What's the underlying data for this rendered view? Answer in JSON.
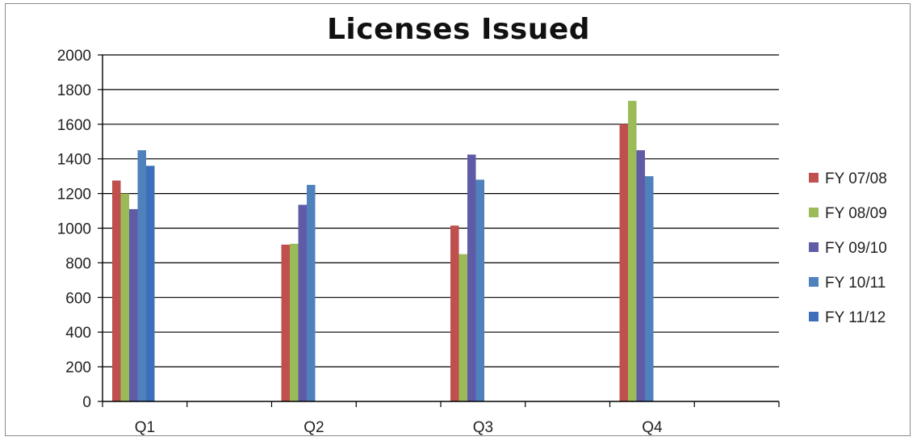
{
  "chart_data": {
    "type": "bar",
    "title": "Licenses Issued",
    "xlabel": "",
    "ylabel": "",
    "categories": [
      "Q1",
      "Q2",
      "Q3",
      "Q4"
    ],
    "ylim": [
      0,
      2000
    ],
    "yticks": [
      0,
      200,
      400,
      600,
      800,
      1000,
      1200,
      1400,
      1600,
      1800,
      2000
    ],
    "grid": true,
    "legend": "right",
    "series": [
      {
        "name": "FY 07/08",
        "color": "#c0504d",
        "values": [
          1275,
          905,
          1015,
          1600
        ]
      },
      {
        "name": "FY 08/09",
        "color": "#9bbb59",
        "values": [
          1200,
          910,
          850,
          1735
        ]
      },
      {
        "name": "FY 09/10",
        "color": "#5f5ba6",
        "values": [
          1110,
          1135,
          1425,
          1450
        ]
      },
      {
        "name": "FY 10/11",
        "color": "#4f81bd",
        "values": [
          1450,
          1250,
          1280,
          1300
        ]
      },
      {
        "name": "FY 11/12",
        "color": "#3d6fba",
        "values": [
          1360,
          null,
          null,
          null
        ]
      }
    ]
  }
}
